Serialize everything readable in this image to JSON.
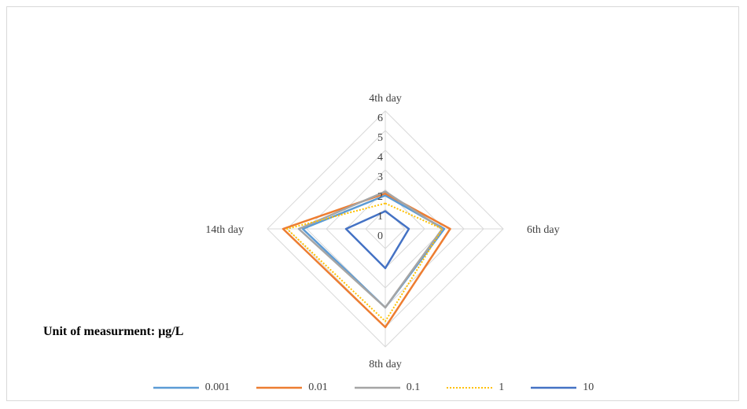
{
  "chart_data": {
    "type": "radar",
    "axes": [
      "4th day",
      "6th day",
      "8th day",
      "14th day"
    ],
    "ticks": [
      "0",
      "1",
      "2",
      "3",
      "4",
      "5",
      "6"
    ],
    "rmax": 6,
    "grid": true,
    "legend_position": "bottom",
    "series": [
      {
        "name": "0.001",
        "color": "#5b9bd5",
        "dash": "solid",
        "values": [
          1.7,
          3.0,
          4.0,
          4.2
        ]
      },
      {
        "name": "0.01",
        "color": "#ed7d31",
        "dash": "solid",
        "values": [
          1.8,
          3.3,
          5.0,
          5.2
        ]
      },
      {
        "name": "0.1",
        "color": "#a5a5a5",
        "dash": "solid",
        "values": [
          1.9,
          2.9,
          4.0,
          4.4
        ]
      },
      {
        "name": "1",
        "color": "#ffc000",
        "dash": "dotted",
        "values": [
          1.3,
          2.9,
          4.7,
          5.0
        ]
      },
      {
        "name": "10",
        "color": "#4472c4",
        "dash": "solid",
        "values": [
          0.9,
          1.2,
          2.0,
          2.0
        ]
      }
    ]
  },
  "note": {
    "prefix": "Unit of measurment: ",
    "unit": "μg/L"
  }
}
